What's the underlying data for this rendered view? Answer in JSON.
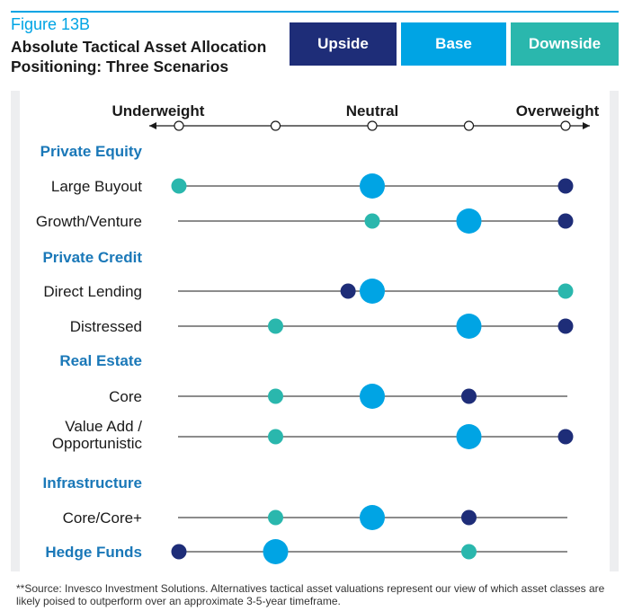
{
  "header": {
    "figure_label": "Figure 13B",
    "title_line1": "Absolute Tactical Asset Allocation",
    "title_line2": "Positioning: Three Scenarios"
  },
  "legend": [
    {
      "label": "Upside",
      "color": "#1e2d78"
    },
    {
      "label": "Base",
      "color": "#00a4e4"
    },
    {
      "label": "Downside",
      "color": "#2ab7ad"
    }
  ],
  "chart_data": {
    "type": "dot-plot",
    "scale": {
      "labels": [
        "Underweight",
        "Neutral",
        "Overweight"
      ],
      "levels": [
        -2,
        -1,
        0,
        1,
        2
      ]
    },
    "rows": [
      {
        "kind": "group",
        "label": "Private Equity"
      },
      {
        "kind": "item",
        "label": "Large Buyout",
        "upside": 2,
        "base": 0,
        "downside": -2
      },
      {
        "kind": "item",
        "label": "Growth/Venture",
        "upside": 2,
        "base": 1,
        "downside": 0
      },
      {
        "kind": "group",
        "label": "Private Credit"
      },
      {
        "kind": "item",
        "label": "Direct Lending",
        "upside": -0.25,
        "base": 0,
        "downside": 2
      },
      {
        "kind": "item",
        "label": "Distressed",
        "upside": 2,
        "base": 1,
        "downside": -1
      },
      {
        "kind": "group",
        "label": "Real Estate"
      },
      {
        "kind": "item",
        "label": "Core",
        "upside": 1,
        "base": 0,
        "downside": -1
      },
      {
        "kind": "item",
        "label": "Value Add / Opportunistic",
        "label_lines": [
          "Value Add /",
          "Opportunistic"
        ],
        "upside": 2,
        "base": 1,
        "downside": -1
      },
      {
        "kind": "group",
        "label": "Infrastructure"
      },
      {
        "kind": "item",
        "label": "Core/Core+",
        "upside": 1,
        "base": 0,
        "downside": -1
      },
      {
        "kind": "group_item",
        "label": "Hedge Funds",
        "upside": -2,
        "base": -1,
        "downside": 1
      }
    ]
  },
  "footer": {
    "source": "**Source: Invesco Investment Solutions. Alternatives tactical asset valuations represent our view of which asset classes are likely poised to outperform over an approximate 3-5-year timeframe."
  }
}
